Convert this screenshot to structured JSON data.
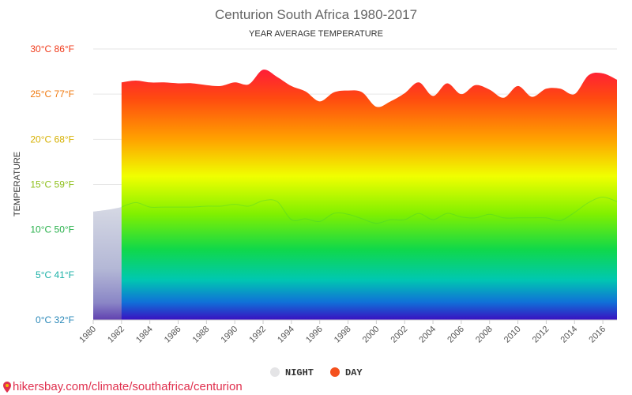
{
  "chart_data": {
    "type": "area",
    "title": "Centurion South Africa 1980-2017",
    "subtitle": "YEAR AVERAGE TEMPERATURE",
    "ylabel": "TEMPERATURE",
    "ylim": [
      0,
      30
    ],
    "yticks": [
      {
        "value": 0,
        "label": "0°C 32°F",
        "color": "#2a88b8"
      },
      {
        "value": 5,
        "label": "5°C 41°F",
        "color": "#1ab0a6"
      },
      {
        "value": 10,
        "label": "10°C 50°F",
        "color": "#27b04a"
      },
      {
        "value": 15,
        "label": "15°C 59°F",
        "color": "#8dbf1a"
      },
      {
        "value": 20,
        "label": "20°C 68°F",
        "color": "#d6b000"
      },
      {
        "value": 25,
        "label": "25°C 77°F",
        "color": "#f07a10"
      },
      {
        "value": 30,
        "label": "30°C 86°F",
        "color": "#f03a1a"
      }
    ],
    "xticks": [
      "1980",
      "1982",
      "1984",
      "1986",
      "1988",
      "1990",
      "1992",
      "1994",
      "1996",
      "1998",
      "2000",
      "2002",
      "2004",
      "2006",
      "2008",
      "2010",
      "2012",
      "2014",
      "2016"
    ],
    "xlim": [
      1980,
      2017
    ],
    "grid": true,
    "legend_position": "bottom",
    "series": [
      {
        "name": "NIGHT",
        "color": "#d8dce3",
        "x": [
          1980,
          1981,
          1982,
          1983,
          1984,
          1985,
          1986,
          1987,
          1988,
          1989,
          1990,
          1991,
          1992,
          1993,
          1994,
          1995,
          1996,
          1997,
          1998,
          1999,
          2000,
          2001,
          2002,
          2003,
          2004,
          2005,
          2006,
          2007,
          2008,
          2009,
          2010,
          2011,
          2012,
          2013,
          2014,
          2015,
          2016,
          2017
        ],
        "values": [
          12.0,
          12.2,
          12.5,
          13.0,
          12.5,
          12.5,
          12.5,
          12.5,
          12.6,
          12.6,
          12.8,
          12.6,
          13.2,
          13.1,
          11.1,
          11.2,
          10.9,
          11.8,
          11.7,
          11.2,
          10.7,
          11.1,
          11.1,
          11.8,
          11.1,
          11.8,
          11.4,
          11.3,
          11.7,
          11.3,
          11.3,
          11.3,
          11.3,
          11.0,
          11.9,
          13.0,
          13.6,
          13.1
        ]
      },
      {
        "name": "DAY",
        "color": "#f4511e",
        "x": [
          1982,
          1983,
          1984,
          1985,
          1986,
          1987,
          1988,
          1989,
          1990,
          1991,
          1992,
          1993,
          1994,
          1995,
          1996,
          1997,
          1998,
          1999,
          2000,
          2001,
          2002,
          2003,
          2004,
          2005,
          2006,
          2007,
          2008,
          2009,
          2010,
          2011,
          2012,
          2013,
          2014,
          2015,
          2016,
          2017
        ],
        "values": [
          26.3,
          26.5,
          26.3,
          26.3,
          26.2,
          26.2,
          26.0,
          25.9,
          26.3,
          26.1,
          27.7,
          26.9,
          25.9,
          25.3,
          24.2,
          25.2,
          25.4,
          25.2,
          23.6,
          24.2,
          25.1,
          26.3,
          24.8,
          26.2,
          25.0,
          26.0,
          25.5,
          24.6,
          25.9,
          24.7,
          25.6,
          25.6,
          25.0,
          27.1,
          27.3,
          26.6
        ]
      }
    ]
  },
  "source_text": "hikersbay.com/climate/southafrica/centurion"
}
